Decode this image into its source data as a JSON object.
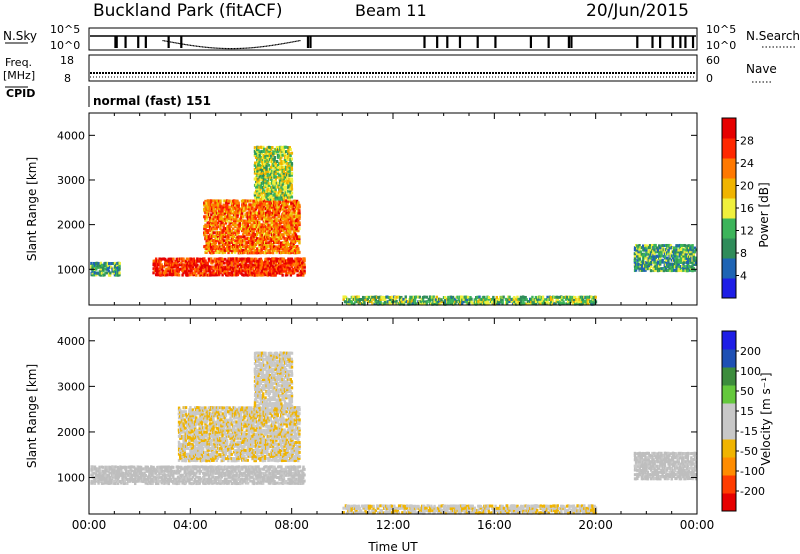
{
  "header": {
    "site": "Buckland Park (fitACF)",
    "beam": "Beam 11",
    "date": "20/Jun/2015"
  },
  "panels": {
    "nsky": {
      "left_label": "N.Sky",
      "right_label": "N.Search",
      "ticks_left": [
        "10^5",
        "10^0"
      ],
      "ticks_right": [
        "10^5",
        "10^0"
      ]
    },
    "freq": {
      "left_label_1": "Freq.",
      "left_label_2": "[MHz]",
      "right_label": "Nave",
      "ticks_left": [
        "18",
        "8"
      ],
      "ticks_right": [
        "60",
        "0"
      ]
    },
    "cpid": {
      "label": "CPID",
      "text": "normal (fast) 151"
    }
  },
  "colors": {
    "power_scale": [
      "#1e1ee6",
      "#1e64b4",
      "#2f8c5a",
      "#3cb45a",
      "#f0f03c",
      "#f0b400",
      "#ff7800",
      "#ff2800",
      "#e60000"
    ],
    "velocity_scale": [
      "#e60000",
      "#ff3c00",
      "#ff8c00",
      "#f0b400",
      "#c8c8c8",
      "#c8c8c8",
      "#64c83c",
      "#3c8c3c",
      "#1e50b4",
      "#1e1ee6"
    ],
    "ground_scatter": "#bebebe"
  },
  "chart_data": [
    {
      "type": "heatmap",
      "name": "power",
      "ylabel": "Slant Range [km]",
      "yticks": [
        "1000",
        "2000",
        "3000",
        "4000"
      ],
      "ylim": [
        200,
        4500
      ],
      "xticks": [
        "00:00",
        "04:00",
        "08:00",
        "12:00",
        "16:00",
        "20:00",
        "00:00"
      ],
      "xlim_hours": [
        0,
        24
      ],
      "colorbar_label": "Power [dB]",
      "colorbar_ticks": [
        "4",
        "8",
        "12",
        "16",
        "20",
        "24",
        "28"
      ],
      "colorbar_range": [
        0,
        30
      ],
      "regions": [
        {
          "x": [
            0,
            1.2
          ],
          "y": [
            900,
            1200
          ],
          "value": 10
        },
        {
          "x": [
            2.5,
            8.5
          ],
          "y": [
            900,
            1300
          ],
          "value": 26
        },
        {
          "x": [
            4.5,
            8.3
          ],
          "y": [
            1400,
            2600
          ],
          "value": 22
        },
        {
          "x": [
            6.5,
            8.0
          ],
          "y": [
            2600,
            3800
          ],
          "value": 14
        },
        {
          "x": [
            21.5,
            24
          ],
          "y": [
            1000,
            1600
          ],
          "value": 10
        },
        {
          "x": [
            10,
            20
          ],
          "y": [
            250,
            450
          ],
          "value": 12
        }
      ]
    },
    {
      "type": "heatmap",
      "name": "velocity",
      "ylabel": "Slant Range [km]",
      "yticks": [
        "1000",
        "2000",
        "3000",
        "4000"
      ],
      "ylim": [
        200,
        4500
      ],
      "xticks": [
        "00:00",
        "04:00",
        "08:00",
        "12:00",
        "16:00",
        "20:00",
        "00:00"
      ],
      "xlim_hours": [
        0,
        24
      ],
      "xlabel": "Time UT",
      "colorbar_label": "Velocity [m s⁻¹]",
      "colorbar_ticks": [
        "200",
        "100",
        "50",
        "15",
        "-15",
        "-50",
        "-100",
        "-200"
      ],
      "colorbar_range": [
        -250,
        250
      ],
      "regions": [
        {
          "x": [
            0,
            8.5
          ],
          "y": [
            900,
            1300
          ],
          "value": 0
        },
        {
          "x": [
            3.5,
            8.3
          ],
          "y": [
            1400,
            2600
          ],
          "value": -40
        },
        {
          "x": [
            6.5,
            8.0
          ],
          "y": [
            2600,
            3800
          ],
          "value": -30
        },
        {
          "x": [
            21.5,
            24
          ],
          "y": [
            1000,
            1600
          ],
          "value": 0
        },
        {
          "x": [
            10,
            20
          ],
          "y": [
            250,
            450
          ],
          "value": -40
        }
      ]
    }
  ]
}
